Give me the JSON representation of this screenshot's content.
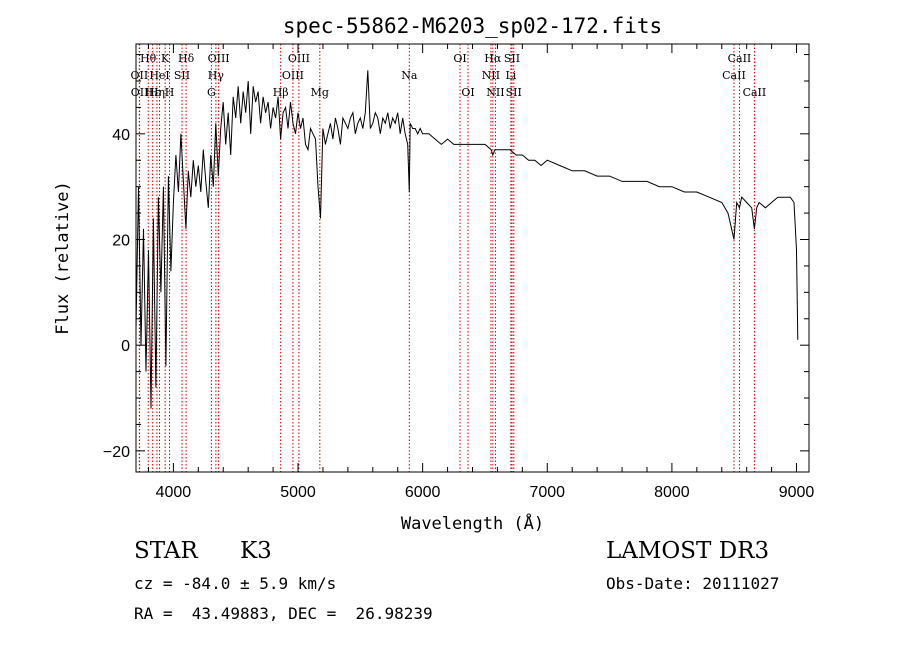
{
  "colors": {
    "background": "#ffffff",
    "spectrum": "#000000",
    "line_markers": "#cc0000",
    "text": "#000000"
  },
  "chart_data": {
    "type": "line",
    "title": "spec-55862-M6203_sp02-172.fits",
    "xlabel": "Wavelength (Å)",
    "ylabel": "Flux (relative)",
    "xlim": [
      3700,
      9100
    ],
    "ylim": [
      -24,
      57
    ],
    "x_ticks": [
      4000,
      5000,
      6000,
      7000,
      8000,
      9000
    ],
    "y_ticks": [
      -20,
      0,
      20,
      40
    ],
    "x_minor_step": 200,
    "y_minor_step": 5,
    "grid": false,
    "series": [
      {
        "name": "spectrum",
        "x": [
          3700,
          3720,
          3740,
          3760,
          3780,
          3800,
          3820,
          3840,
          3860,
          3880,
          3900,
          3920,
          3940,
          3960,
          3980,
          4000,
          4020,
          4040,
          4060,
          4080,
          4100,
          4120,
          4140,
          4160,
          4180,
          4200,
          4220,
          4240,
          4260,
          4280,
          4300,
          4320,
          4340,
          4360,
          4380,
          4400,
          4420,
          4440,
          4460,
          4480,
          4500,
          4520,
          4540,
          4560,
          4580,
          4600,
          4620,
          4640,
          4660,
          4680,
          4700,
          4720,
          4740,
          4760,
          4780,
          4800,
          4820,
          4840,
          4860,
          4880,
          4900,
          4920,
          4940,
          4960,
          4980,
          5000,
          5020,
          5040,
          5060,
          5080,
          5100,
          5120,
          5140,
          5160,
          5180,
          5200,
          5220,
          5240,
          5260,
          5280,
          5300,
          5320,
          5340,
          5360,
          5380,
          5400,
          5420,
          5440,
          5460,
          5480,
          5500,
          5520,
          5540,
          5560,
          5580,
          5600,
          5620,
          5640,
          5660,
          5680,
          5700,
          5720,
          5740,
          5760,
          5780,
          5800,
          5820,
          5840,
          5860,
          5880,
          5893,
          5900,
          5920,
          5940,
          5960,
          5980,
          6000,
          6050,
          6100,
          6150,
          6200,
          6250,
          6300,
          6350,
          6400,
          6450,
          6500,
          6550,
          6563,
          6580,
          6600,
          6650,
          6700,
          6750,
          6800,
          6850,
          6900,
          6950,
          7000,
          7100,
          7200,
          7300,
          7400,
          7500,
          7600,
          7700,
          7800,
          7900,
          8000,
          8100,
          8200,
          8300,
          8400,
          8450,
          8498,
          8520,
          8542,
          8560,
          8600,
          8640,
          8662,
          8680,
          8700,
          8750,
          8800,
          8850,
          8900,
          8950,
          8980,
          9000,
          9010
        ],
        "y": [
          3,
          30,
          0,
          22,
          -5,
          18,
          -12,
          24,
          -8,
          28,
          10,
          30,
          -4,
          32,
          14,
          27,
          36,
          29,
          40,
          31,
          22,
          33,
          28,
          35,
          30,
          34,
          29,
          37,
          31,
          26,
          36,
          30,
          42,
          32,
          41,
          46,
          38,
          44,
          36,
          47,
          43,
          49,
          42,
          48,
          44,
          50,
          40,
          49,
          46,
          48,
          42,
          47,
          44,
          46,
          41,
          45,
          43,
          47,
          39,
          44,
          45,
          41,
          46,
          42,
          40,
          44,
          41,
          43,
          38,
          37,
          41,
          40,
          39,
          30,
          24,
          41,
          38,
          40,
          42,
          39,
          43,
          41,
          38,
          43,
          42,
          41,
          43,
          44,
          40,
          42,
          43,
          41,
          44,
          52,
          41,
          42,
          44,
          43,
          40,
          43,
          42,
          44,
          41,
          43,
          42,
          44,
          40,
          43,
          40,
          38,
          29,
          42,
          41,
          41,
          40,
          41,
          40,
          40,
          39,
          38,
          39,
          38,
          38,
          38,
          38,
          38,
          38,
          37,
          36,
          37,
          37,
          37,
          37,
          36,
          36,
          35,
          35,
          34,
          35,
          34,
          33,
          33,
          32,
          32,
          31,
          31,
          31,
          30,
          30,
          29,
          29,
          28,
          27,
          25,
          20,
          27,
          26,
          28,
          27,
          26,
          22,
          26,
          27,
          26,
          27,
          28,
          28,
          28,
          27,
          18,
          1
        ]
      }
    ],
    "line_markers": [
      {
        "label": "Hθ",
        "x": 3798,
        "row": 1
      },
      {
        "label": "OII",
        "x": 3727,
        "row": 2
      },
      {
        "label": "OII",
        "x": 3729,
        "row": 3
      },
      {
        "label": "HeI",
        "x": 3889,
        "row": 2
      },
      {
        "label": "Hε",
        "x": 3834,
        "row": 3
      },
      {
        "label": "K",
        "x": 3934,
        "row": 1
      },
      {
        "label": "Hη",
        "x": 3868,
        "row": 3
      },
      {
        "label": "SII",
        "x": 4069,
        "row": 2
      },
      {
        "label": "H",
        "x": 3969,
        "row": 3
      },
      {
        "label": "Hδ",
        "x": 4102,
        "row": 1
      },
      {
        "label": "OIII",
        "x": 4363,
        "row": 1
      },
      {
        "label": "Hγ",
        "x": 4341,
        "row": 2
      },
      {
        "label": "G",
        "x": 4305,
        "row": 3
      },
      {
        "label": "Hβ",
        "x": 4861,
        "row": 3
      },
      {
        "label": "OIII",
        "x": 5007,
        "row": 1
      },
      {
        "label": "OIII",
        "x": 4959,
        "row": 2
      },
      {
        "label": "Mg",
        "x": 5175,
        "row": 3
      },
      {
        "label": "Na",
        "x": 5893,
        "row": 2
      },
      {
        "label": "OI",
        "x": 6300,
        "row": 1
      },
      {
        "label": "OI",
        "x": 6364,
        "row": 3
      },
      {
        "label": "Hα",
        "x": 6563,
        "row": 1
      },
      {
        "label": "NII",
        "x": 6548,
        "row": 2
      },
      {
        "label": "NII",
        "x": 6584,
        "row": 3
      },
      {
        "label": "SII",
        "x": 6717,
        "row": 1
      },
      {
        "label": "Li",
        "x": 6708,
        "row": 2
      },
      {
        "label": "SII",
        "x": 6731,
        "row": 3
      },
      {
        "label": "CaII",
        "x": 8542,
        "row": 1
      },
      {
        "label": "CaII",
        "x": 8498,
        "row": 2
      },
      {
        "label": "CaII",
        "x": 8662,
        "row": 3
      }
    ]
  },
  "info": {
    "object_class": "STAR",
    "subclass": "K3",
    "survey": "LAMOST DR3",
    "cz": "cz = -84.0 ± 5.9 km/s",
    "obs_date": "Obs-Date: 20111027",
    "coords": "RA =  43.49883, DEC =  26.98239"
  }
}
